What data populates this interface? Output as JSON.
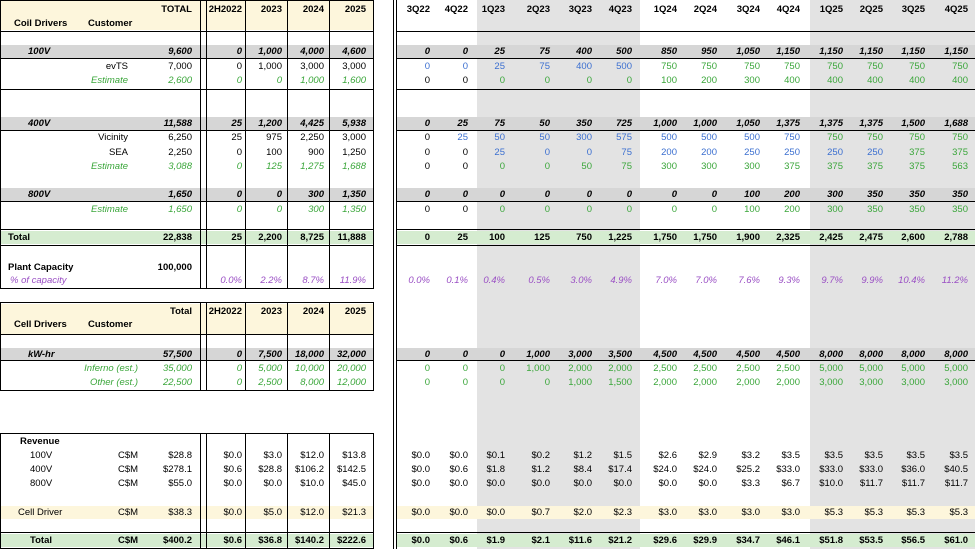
{
  "header": {
    "left": [
      "TOTAL",
      "2H2022",
      "2023",
      "2024",
      "2025"
    ],
    "quarters": [
      "3Q22",
      "4Q22",
      "1Q23",
      "2Q23",
      "3Q23",
      "4Q23",
      "1Q24",
      "2Q24",
      "3Q24",
      "4Q24",
      "1Q25",
      "2Q25",
      "3Q25",
      "4Q25"
    ],
    "coil_drivers": "Coil Drivers",
    "customer": "Customer"
  },
  "coil_rows": [
    {
      "y": 46,
      "label": "100V",
      "sub": "",
      "style": "bi",
      "color": "",
      "left": [
        "9,600",
        "0",
        "1,000",
        "4,000",
        "4,600"
      ],
      "q": [
        "0",
        "0",
        "25",
        "75",
        "400",
        "500",
        "850",
        "950",
        "1,050",
        "1,150",
        "1,150",
        "1,150",
        "1,150",
        "1,150"
      ],
      "qc": "",
      "band": "gray"
    },
    {
      "y": 61,
      "label": "",
      "sub": "evTS",
      "style": "",
      "color": "",
      "left": [
        "7,000",
        "0",
        "1,000",
        "3,000",
        "3,000"
      ],
      "q": [
        "0",
        "0",
        "25",
        "75",
        "400",
        "500",
        "750",
        "750",
        "750",
        "750",
        "750",
        "750",
        "750",
        "750"
      ],
      "qc": "mixed1"
    },
    {
      "y": 75,
      "label": "",
      "sub": "Estimate",
      "style": "i",
      "color": "green",
      "left": [
        "2,600",
        "0",
        "0",
        "1,000",
        "1,600"
      ],
      "q": [
        "0",
        "0",
        "0",
        "0",
        "0",
        "0",
        "100",
        "200",
        "300",
        "400",
        "400",
        "400",
        "400",
        "400"
      ],
      "qc": "mixed2"
    },
    {
      "y": 118,
      "label": "400V",
      "sub": "",
      "style": "bi",
      "color": "",
      "left": [
        "11,588",
        "25",
        "1,200",
        "4,425",
        "5,938"
      ],
      "q": [
        "0",
        "25",
        "75",
        "50",
        "350",
        "725",
        "1,000",
        "1,000",
        "1,050",
        "1,375",
        "1,375",
        "1,375",
        "1,500",
        "1,688"
      ],
      "qc": "",
      "band": "gray"
    },
    {
      "y": 132,
      "label": "",
      "sub": "Vicinity",
      "style": "",
      "color": "",
      "left": [
        "6,250",
        "25",
        "975",
        "2,250",
        "3,000"
      ],
      "q": [
        "0",
        "25",
        "50",
        "50",
        "300",
        "575",
        "500",
        "500",
        "500",
        "750",
        "750",
        "750",
        "750",
        "750"
      ],
      "qc": "mixed3"
    },
    {
      "y": 147,
      "label": "",
      "sub": "SEA",
      "style": "",
      "color": "",
      "left": [
        "2,250",
        "0",
        "100",
        "900",
        "1,250"
      ],
      "q": [
        "0",
        "0",
        "25",
        "0",
        "0",
        "75",
        "200",
        "200",
        "250",
        "250",
        "250",
        "250",
        "375",
        "375"
      ],
      "qc": "mixed4"
    },
    {
      "y": 161,
      "label": "",
      "sub": "Estimate",
      "style": "i",
      "color": "green",
      "left": [
        "3,088",
        "0",
        "125",
        "1,275",
        "1,688"
      ],
      "q": [
        "0",
        "0",
        "0",
        "0",
        "50",
        "75",
        "300",
        "300",
        "300",
        "375",
        "375",
        "375",
        "375",
        "563"
      ],
      "qc": "mixed2"
    },
    {
      "y": 189,
      "label": "800V",
      "sub": "",
      "style": "bi",
      "color": "",
      "left": [
        "1,650",
        "0",
        "0",
        "300",
        "1,350"
      ],
      "q": [
        "0",
        "0",
        "0",
        "0",
        "0",
        "0",
        "0",
        "0",
        "100",
        "200",
        "300",
        "350",
        "350",
        "350"
      ],
      "qc": "",
      "band": "gray"
    },
    {
      "y": 204,
      "label": "",
      "sub": "Estimate",
      "style": "i",
      "color": "green",
      "left": [
        "1,650",
        "0",
        "0",
        "300",
        "1,350"
      ],
      "q": [
        "0",
        "0",
        "0",
        "0",
        "0",
        "0",
        "0",
        "0",
        "100",
        "200",
        "300",
        "350",
        "350",
        "350"
      ],
      "qc": "mixed2"
    },
    {
      "y": 232,
      "label": "Total",
      "sub": "",
      "style": "b",
      "color": "",
      "left": [
        "22,838",
        "25",
        "2,200",
        "8,725",
        "11,888"
      ],
      "q": [
        "0",
        "25",
        "100",
        "125",
        "750",
        "1,225",
        "1,750",
        "1,750",
        "1,900",
        "2,325",
        "2,425",
        "2,475",
        "2,600",
        "2,788"
      ],
      "qc": "",
      "band": "green"
    }
  ],
  "plant_capacity": {
    "label": "Plant Capacity",
    "value": "100,000",
    "pct_label": "% of capacity",
    "pct_left": [
      "0.0%",
      "2.2%",
      "8.7%",
      "11.9%"
    ],
    "pct_q": [
      "0.0%",
      "0.1%",
      "0.4%",
      "0.5%",
      "3.0%",
      "4.9%",
      "7.0%",
      "7.0%",
      "7.6%",
      "9.3%",
      "9.7%",
      "9.9%",
      "10.4%",
      "11.2%"
    ]
  },
  "cell_header": {
    "left": [
      "Total",
      "2H2022",
      "2023",
      "2024",
      "2025"
    ],
    "cell_drivers": "Cell Drivers",
    "customer": "Customer"
  },
  "cell_rows": [
    {
      "y": 349,
      "label": "kW-hr",
      "sub": "",
      "style": "bi",
      "color": "",
      "left": [
        "57,500",
        "0",
        "7,500",
        "18,000",
        "32,000"
      ],
      "q": [
        "0",
        "0",
        "0",
        "1,000",
        "3,000",
        "3,500",
        "4,500",
        "4,500",
        "4,500",
        "4,500",
        "8,000",
        "8,000",
        "8,000",
        "8,000"
      ],
      "qc": "",
      "band": "gray"
    },
    {
      "y": 363,
      "label": "",
      "sub": "Inferno (est.)",
      "style": "i",
      "color": "green",
      "left": [
        "35,000",
        "0",
        "5,000",
        "10,000",
        "20,000"
      ],
      "q": [
        "0",
        "0",
        "0",
        "1,000",
        "2,000",
        "2,000",
        "2,500",
        "2,500",
        "2,500",
        "2,500",
        "5,000",
        "5,000",
        "5,000",
        "5,000"
      ],
      "qc": "green"
    },
    {
      "y": 377,
      "label": "",
      "sub": "Other (est.)",
      "style": "i",
      "color": "green",
      "left": [
        "22,500",
        "0",
        "2,500",
        "8,000",
        "12,000"
      ],
      "q": [
        "0",
        "0",
        "0",
        "0",
        "1,000",
        "1,500",
        "2,000",
        "2,000",
        "2,000",
        "2,000",
        "3,000",
        "3,000",
        "3,000",
        "3,000"
      ],
      "qc": "green"
    }
  ],
  "revenue": {
    "title": "Revenue",
    "rows": [
      {
        "y": 450,
        "label": "100V",
        "unit": "C$M",
        "left": [
          "$28.8",
          "$0.0",
          "$3.0",
          "$12.0",
          "$13.8"
        ],
        "q": [
          "$0.0",
          "$0.0",
          "$0.1",
          "$0.2",
          "$1.2",
          "$1.5",
          "$2.6",
          "$2.9",
          "$3.2",
          "$3.5",
          "$3.5",
          "$3.5",
          "$3.5",
          "$3.5"
        ]
      },
      {
        "y": 464,
        "label": "400V",
        "unit": "C$M",
        "left": [
          "$278.1",
          "$0.6",
          "$28.8",
          "$106.2",
          "$142.5"
        ],
        "q": [
          "$0.0",
          "$0.6",
          "$1.8",
          "$1.2",
          "$8.4",
          "$17.4",
          "$24.0",
          "$24.0",
          "$25.2",
          "$33.0",
          "$33.0",
          "$33.0",
          "$36.0",
          "$40.5"
        ]
      },
      {
        "y": 478,
        "label": "800V",
        "unit": "C$M",
        "left": [
          "$55.0",
          "$0.0",
          "$0.0",
          "$10.0",
          "$45.0"
        ],
        "q": [
          "$0.0",
          "$0.0",
          "$0.0",
          "$0.0",
          "$0.0",
          "$0.0",
          "$0.0",
          "$0.0",
          "$3.3",
          "$6.7",
          "$10.0",
          "$11.7",
          "$11.7",
          "$11.7"
        ]
      },
      {
        "y": 507,
        "label": "Cell Driver",
        "unit": "C$M",
        "left": [
          "$38.3",
          "$0.0",
          "$5.0",
          "$12.0",
          "$21.3"
        ],
        "q": [
          "$0.0",
          "$0.0",
          "$0.0",
          "$0.7",
          "$2.0",
          "$2.3",
          "$3.0",
          "$3.0",
          "$3.0",
          "$3.0",
          "$5.3",
          "$5.3",
          "$5.3",
          "$5.3"
        ],
        "band": "yellow"
      },
      {
        "y": 535,
        "label": "Total",
        "unit": "C$M",
        "left": [
          "$400.2",
          "$0.6",
          "$36.8",
          "$140.2",
          "$222.6"
        ],
        "q": [
          "$0.0",
          "$0.6",
          "$1.9",
          "$2.1",
          "$11.6",
          "$21.2",
          "$29.6",
          "$29.9",
          "$34.7",
          "$46.1",
          "$51.8",
          "$53.5",
          "$56.5",
          "$61.0"
        ],
        "band": "green",
        "bold": true
      }
    ]
  },
  "colors": {
    "green": "#3aa63a",
    "blue": "#3b6fd0",
    "purple": "#9a4fc4"
  }
}
